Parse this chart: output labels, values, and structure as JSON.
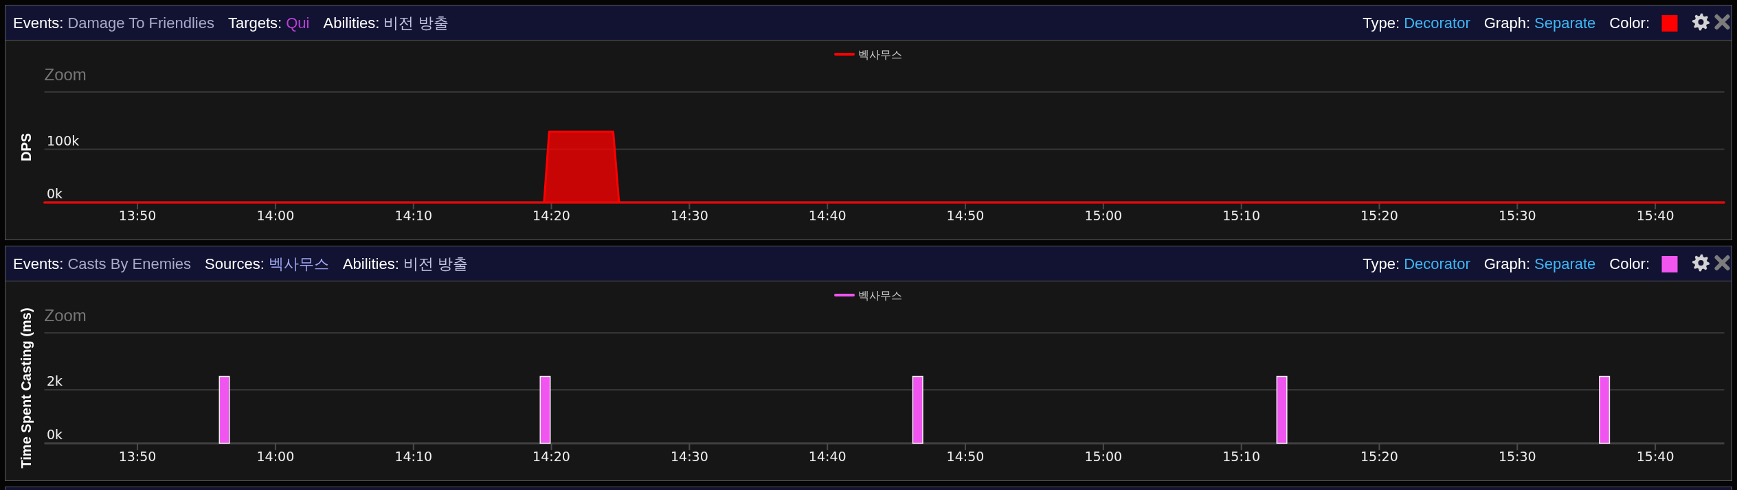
{
  "chart_data": [
    {
      "type": "area",
      "annotations": [
        "Events:",
        "Damage To Friendlies",
        "Targets:",
        "Qui",
        "Abilities:",
        "비전 방출",
        "Type:",
        "Decorator",
        "Graph:",
        "Separate",
        "Color:",
        "Zoom"
      ],
      "ylabel": "DPS",
      "series": [
        {
          "name": "벡사무스",
          "color": "#ff0000",
          "x": [
            13.7208,
            14.3244,
            14.3306,
            14.408,
            14.415,
            15.75
          ],
          "values": [
            0,
            0,
            133000,
            133000,
            0,
            0
          ]
        }
      ],
      "xlim": [
        13.7208,
        15.75
      ],
      "xticks": [
        {
          "value": 13.8333,
          "label": "13:50"
        },
        {
          "value": 14,
          "label": "14:00"
        },
        {
          "value": 14.1667,
          "label": "14:10"
        },
        {
          "value": 14.3333,
          "label": "14:20"
        },
        {
          "value": 14.5,
          "label": "14:30"
        },
        {
          "value": 14.6667,
          "label": "14:40"
        },
        {
          "value": 14.8333,
          "label": "14:50"
        },
        {
          "value": 15,
          "label": "15:00"
        },
        {
          "value": 15.1667,
          "label": "15:10"
        },
        {
          "value": 15.3333,
          "label": "15:20"
        },
        {
          "value": 15.5,
          "label": "15:30"
        },
        {
          "value": 15.6667,
          "label": "15:40"
        }
      ],
      "ylim": [
        0,
        208000
      ],
      "yticks": [
        {
          "value": 0,
          "label": "0k"
        },
        {
          "value": 100000,
          "label": "100k"
        }
      ],
      "grid": "y",
      "legend": "top"
    },
    {
      "type": "bar",
      "annotations": [
        "Events:",
        "Casts By Enemies",
        "Sources:",
        "벡사무스",
        "Abilities:",
        "비전 방출",
        "Type:",
        "Decorator",
        "Graph:",
        "Separate",
        "Color:",
        "Zoom"
      ],
      "ylabel": "Time Spent Casting (ms)",
      "series": [
        {
          "name": "벡사무스",
          "color": "#f055f0",
          "x": [
            13.9383,
            14.3258,
            14.7758,
            15.2156,
            15.6053
          ],
          "values": [
            2500,
            2500,
            2500,
            2500,
            2500
          ]
        }
      ],
      "xlim": [
        13.7208,
        15.75
      ],
      "xticks": [
        {
          "value": 13.8333,
          "label": "13:50"
        },
        {
          "value": 14,
          "label": "14:00"
        },
        {
          "value": 14.1667,
          "label": "14:10"
        },
        {
          "value": 14.3333,
          "label": "14:20"
        },
        {
          "value": 14.5,
          "label": "14:30"
        },
        {
          "value": 14.6667,
          "label": "14:40"
        },
        {
          "value": 14.8333,
          "label": "14:50"
        },
        {
          "value": 15,
          "label": "15:00"
        },
        {
          "value": 15.1667,
          "label": "15:10"
        },
        {
          "value": 15.3333,
          "label": "15:20"
        },
        {
          "value": 15.5,
          "label": "15:30"
        },
        {
          "value": 15.6667,
          "label": "15:40"
        }
      ],
      "ylim": [
        0,
        4130
      ],
      "yticks": [
        {
          "value": 0,
          "label": "0k"
        },
        {
          "value": 2000,
          "label": "2k"
        }
      ],
      "grid": "y",
      "legend": "top"
    }
  ]
}
